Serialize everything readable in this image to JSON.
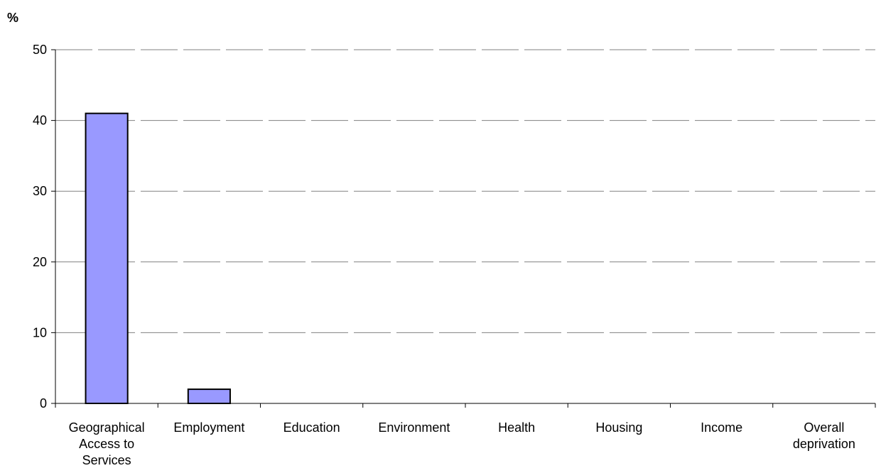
{
  "chart_data": {
    "type": "bar",
    "title": "",
    "xlabel": "",
    "ylabel": "%",
    "ylim": [
      0,
      50
    ],
    "yticks": [
      0,
      10,
      20,
      30,
      40,
      50
    ],
    "categories": [
      [
        "Geographical",
        "Access to",
        "Services"
      ],
      [
        "Employment"
      ],
      [
        "Education"
      ],
      [
        "Environment"
      ],
      [
        "Health"
      ],
      [
        "Housing"
      ],
      [
        "Income"
      ],
      [
        "Overall",
        "deprivation"
      ]
    ],
    "values": [
      41,
      2,
      0,
      0,
      0,
      0,
      0,
      0
    ],
    "grid": true,
    "legend": "none",
    "bar_color": "#9999ff",
    "bar_edge_color": "#000000",
    "grid_color": "#808080"
  }
}
